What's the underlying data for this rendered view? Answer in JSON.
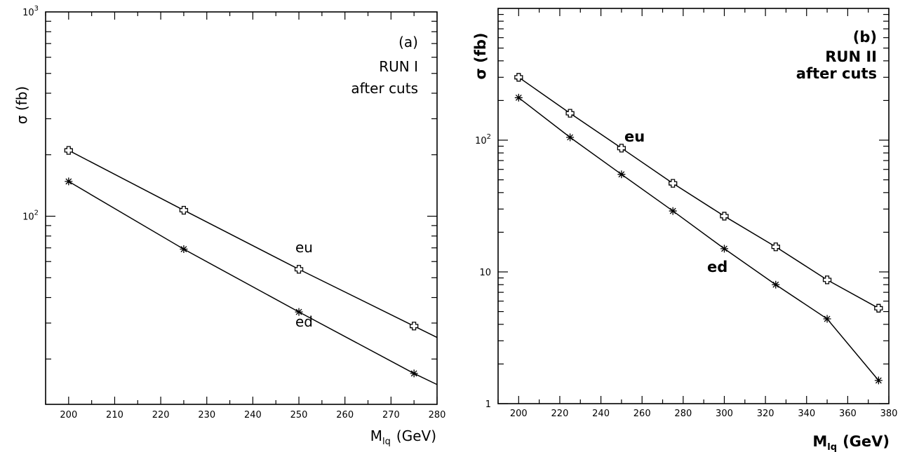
{
  "chart_data": [
    {
      "type": "line",
      "panel_label": "(a)",
      "annotation_lines": [
        "RUN I",
        "after cuts"
      ],
      "xlabel": "M",
      "xlabel_sub": "lq",
      "xlabel_unit": "(GeV)",
      "ylabel": "σ (fb)",
      "xlim": [
        195,
        280
      ],
      "ylim": [
        12,
        1000
      ],
      "yscale": "log",
      "x_ticks": [
        "200",
        "210",
        "220",
        "230",
        "240",
        "250",
        "260",
        "270",
        "280"
      ],
      "y_ticks": [
        {
          "base": "10",
          "exp": "2",
          "value": 100
        },
        {
          "base": "10",
          "exp": "3",
          "value": 1000
        }
      ],
      "series": [
        {
          "name": "eu",
          "marker": "cross",
          "x": [
            200,
            225,
            250,
            275
          ],
          "y": [
            210,
            107,
            55,
            29
          ],
          "curve_end": {
            "x": 280,
            "y": 25.5
          }
        },
        {
          "name": "ed",
          "marker": "star",
          "x": [
            200,
            225,
            250,
            275
          ],
          "y": [
            148,
            69,
            34,
            17
          ],
          "curve_end": {
            "x": 280,
            "y": 15
          }
        }
      ]
    },
    {
      "type": "line",
      "panel_label": "(b)",
      "annotation_lines": [
        "RUN II",
        "after cuts"
      ],
      "xlabel": "M",
      "xlabel_sub": "lq",
      "xlabel_unit": "(GeV)",
      "ylabel": "σ (fb)",
      "xlim": [
        190,
        380
      ],
      "ylim": [
        1,
        1000
      ],
      "yscale": "log",
      "x_ticks": [
        "200",
        "220",
        "240",
        "260",
        "280",
        "300",
        "320",
        "340",
        "360",
        "380"
      ],
      "y_ticks": [
        {
          "base": "1",
          "exp": "",
          "value": 1
        },
        {
          "base": "10",
          "exp": "",
          "value": 10
        },
        {
          "base": "10",
          "exp": "2",
          "value": 100
        }
      ],
      "series": [
        {
          "name": "eu",
          "marker": "cross",
          "x": [
            200,
            225,
            250,
            275,
            300,
            325,
            350,
            375
          ],
          "y": [
            300,
            160,
            87,
            47,
            26.5,
            15.5,
            8.7,
            5.3
          ]
        },
        {
          "name": "ed",
          "marker": "star",
          "x": [
            200,
            225,
            250,
            275,
            300,
            325,
            350,
            375
          ],
          "y": [
            210,
            105,
            55,
            29,
            15,
            8,
            4.4,
            1.5
          ]
        }
      ]
    }
  ]
}
